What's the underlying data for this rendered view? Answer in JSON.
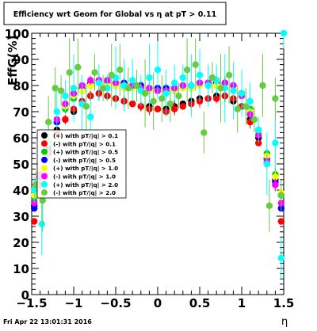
{
  "chart_data": {
    "type": "scatter",
    "title": "Efficiency wrt Geom for Global vs   η at pT > 0.11",
    "xlabel": "η",
    "ylabel": "EffG(%)",
    "xlim": [
      -1.5,
      1.5
    ],
    "ylim": [
      0,
      100
    ],
    "x_ticks": [
      "−1.5",
      "−1",
      "−0.5",
      "0",
      "0.5",
      "1",
      "1.5"
    ],
    "y_ticks": [
      "0",
      "10",
      "20",
      "30",
      "40",
      "50",
      "60",
      "70",
      "80",
      "90",
      "100"
    ],
    "timestamp": "Fri Apr 22 13:01:31 2016",
    "legend_position": "middle-left",
    "series": [
      {
        "name": "(+) with pT/|q| > 0.1",
        "color": "#000000",
        "x": [
          -1.47,
          -1.4,
          -1.3,
          -1.2,
          -1.1,
          -1.0,
          -0.9,
          -0.8,
          -0.7,
          -0.6,
          -0.5,
          -0.4,
          -0.3,
          -0.2,
          -0.1,
          0.0,
          0.1,
          0.2,
          0.3,
          0.4,
          0.5,
          0.6,
          0.7,
          0.8,
          0.9,
          1.0,
          1.1,
          1.2,
          1.3,
          1.4,
          1.47
        ],
        "y": [
          34,
          45,
          55,
          63,
          67,
          70,
          73,
          76,
          77,
          76,
          75,
          74,
          73,
          72,
          72,
          71,
          71,
          72,
          73,
          74,
          75,
          75,
          76,
          76,
          74,
          72,
          67,
          60,
          52,
          44,
          38
        ]
      },
      {
        "name": "(-) with pT/|q| > 0.1",
        "color": "#ff0000",
        "x": [
          -1.47,
          -1.4,
          -1.3,
          -1.2,
          -1.1,
          -1.0,
          -0.9,
          -0.8,
          -0.7,
          -0.6,
          -0.5,
          -0.4,
          -0.3,
          -0.2,
          -0.1,
          0.0,
          0.1,
          0.2,
          0.3,
          0.4,
          0.5,
          0.6,
          0.7,
          0.8,
          0.9,
          1.0,
          1.1,
          1.2,
          1.3,
          1.4,
          1.47
        ],
        "y": [
          28,
          42,
          54,
          62,
          67,
          71,
          74,
          76,
          77,
          76,
          75,
          74,
          73,
          72,
          71,
          71,
          70,
          71,
          72,
          73,
          74,
          75,
          75,
          76,
          75,
          72,
          66,
          58,
          50,
          42,
          28
        ]
      },
      {
        "name": "(+) with pT/|q| > 0.5",
        "color": "#00cc00",
        "x": [
          -1.47,
          -1.4,
          -1.3,
          -1.2,
          -1.1,
          -1.0,
          -0.9,
          -0.8,
          -0.7,
          -0.6,
          -0.5,
          -0.4,
          -0.3,
          -0.2,
          -0.1,
          0.0,
          0.1,
          0.2,
          0.3,
          0.4,
          0.5,
          0.6,
          0.7,
          0.8,
          0.9,
          1.0,
          1.1,
          1.2,
          1.3,
          1.4,
          1.47
        ],
        "y": [
          36,
          47,
          58,
          66,
          71,
          75,
          78,
          80,
          81,
          81,
          80,
          80,
          79,
          79,
          78,
          78,
          78,
          78,
          79,
          79,
          80,
          80,
          81,
          81,
          80,
          77,
          71,
          63,
          54,
          46,
          38
        ]
      },
      {
        "name": "(-) with pT/|q| > 0.5",
        "color": "#0000ff",
        "x": [
          -1.47,
          -1.4,
          -1.3,
          -1.2,
          -1.1,
          -1.0,
          -0.9,
          -0.8,
          -0.7,
          -0.6,
          -0.5,
          -0.4,
          -0.3,
          -0.2,
          -0.1,
          0.0,
          0.1,
          0.2,
          0.3,
          0.4,
          0.5,
          0.6,
          0.7,
          0.8,
          0.9,
          1.0,
          1.1,
          1.2,
          1.3,
          1.4,
          1.47
        ],
        "y": [
          33,
          45,
          57,
          66,
          72,
          76,
          79,
          81,
          82,
          82,
          81,
          81,
          80,
          80,
          79,
          79,
          79,
          79,
          80,
          80,
          81,
          81,
          81,
          81,
          80,
          77,
          70,
          62,
          52,
          43,
          33
        ]
      },
      {
        "name": "(+) with pT/|q| > 1.0",
        "color": "#ffff00",
        "x": [
          -1.47,
          -1.4,
          -1.3,
          -1.2,
          -1.1,
          -1.0,
          -0.9,
          -0.8,
          -0.7,
          -0.6,
          -0.5,
          -0.4,
          -0.3,
          -0.2,
          -0.1,
          0.0,
          0.1,
          0.2,
          0.3,
          0.4,
          0.5,
          0.6,
          0.7,
          0.8,
          0.9,
          1.0,
          1.1,
          1.2,
          1.3,
          1.4,
          1.47
        ],
        "y": [
          38,
          48,
          59,
          67,
          72,
          76,
          78,
          80,
          81,
          80,
          80,
          79,
          79,
          78,
          78,
          78,
          77,
          78,
          79,
          79,
          80,
          80,
          80,
          80,
          79,
          76,
          70,
          62,
          53,
          45,
          39
        ]
      },
      {
        "name": "(-) with pT/|q| > 1.0",
        "color": "#ff00ff",
        "x": [
          -1.47,
          -1.4,
          -1.3,
          -1.2,
          -1.1,
          -1.0,
          -0.9,
          -0.8,
          -0.7,
          -0.6,
          -0.5,
          -0.4,
          -0.3,
          -0.2,
          -0.1,
          0.0,
          0.1,
          0.2,
          0.3,
          0.4,
          0.5,
          0.6,
          0.7,
          0.8,
          0.9,
          1.0,
          1.1,
          1.2,
          1.3,
          1.4,
          1.47
        ],
        "y": [
          35,
          46,
          58,
          67,
          73,
          77,
          80,
          82,
          82,
          82,
          81,
          80,
          80,
          79,
          79,
          78,
          78,
          79,
          80,
          80,
          81,
          81,
          82,
          81,
          80,
          76,
          69,
          61,
          51,
          42,
          35
        ]
      },
      {
        "name": "(+) with pT/|q| > 2.0",
        "color": "#00ffff",
        "x": [
          -1.47,
          -1.38,
          -1.3,
          -1.2,
          -1.1,
          -1.0,
          -0.9,
          -0.8,
          -0.7,
          -0.6,
          -0.5,
          -0.4,
          -0.3,
          -0.2,
          -0.1,
          0.0,
          0.1,
          0.2,
          0.3,
          0.4,
          0.5,
          0.6,
          0.7,
          0.8,
          0.9,
          1.0,
          1.1,
          1.2,
          1.3,
          1.4,
          1.47,
          1.5
        ],
        "y": [
          40,
          27,
          58,
          70,
          76,
          79,
          73,
          68,
          81,
          79,
          83,
          80,
          82,
          78,
          83,
          86,
          77,
          81,
          83,
          80,
          84,
          80,
          82,
          79,
          78,
          77,
          74,
          63,
          50,
          58,
          14,
          100
        ]
      },
      {
        "name": "(-) with pT/|q| > 2.0",
        "color": "#66cc44",
        "x": [
          -1.45,
          -1.37,
          -1.3,
          -1.22,
          -1.15,
          -1.05,
          -0.95,
          -0.85,
          -0.75,
          -0.65,
          -0.55,
          -0.45,
          -0.35,
          -0.25,
          -0.15,
          -0.05,
          0.05,
          0.15,
          0.25,
          0.35,
          0.45,
          0.55,
          0.65,
          0.75,
          0.85,
          0.95,
          1.05,
          1.15,
          1.25,
          1.33,
          1.4,
          1.47
        ],
        "y": [
          42,
          36,
          66,
          79,
          78,
          85,
          87,
          72,
          85,
          79,
          84,
          86,
          79,
          80,
          77,
          74,
          75,
          73,
          76,
          86,
          88,
          62,
          83,
          79,
          84,
          71,
          72,
          67,
          80,
          34,
          75,
          38
        ]
      }
    ]
  }
}
